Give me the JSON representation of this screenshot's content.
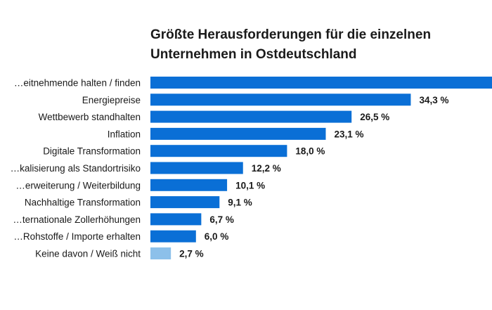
{
  "chart_data": {
    "type": "bar",
    "orientation": "horizontal",
    "title_lines": [
      "Größte Herausforderungen für die einzelnen",
      "Unternehmen in Ostdeutschland"
    ],
    "categories": [
      "…eitnehmende halten / finden",
      "Energiepreise",
      "Wettbewerb standhalten",
      "Inflation",
      "Digitale Transformation",
      "…kalisierung als Standortrisiko",
      "…erweiterung / Weiterbildung",
      "Nachhaltige Transformation",
      "…ternationale Zollerhöhungen",
      "…Rohstoffe / Importe erhalten",
      "Keine davon / Weiß nicht"
    ],
    "values": [
      45.0,
      34.3,
      26.5,
      23.1,
      18.0,
      12.2,
      10.1,
      9.1,
      6.7,
      6.0,
      2.7
    ],
    "value_labels": [
      "",
      "34,3 %",
      "26,5 %",
      "23,1 %",
      "18,0 %",
      "12,2 %",
      "10,1 %",
      "9,1 %",
      "6,7 %",
      "6,0 %",
      "2,7 %"
    ],
    "colors": [
      "#0a6fd6",
      "#0a6fd6",
      "#0a6fd6",
      "#0a6fd6",
      "#0a6fd6",
      "#0a6fd6",
      "#0a6fd6",
      "#0a6fd6",
      "#0a6fd6",
      "#0a6fd6",
      "#8cc0ea"
    ],
    "xlim": [
      0,
      45
    ]
  }
}
